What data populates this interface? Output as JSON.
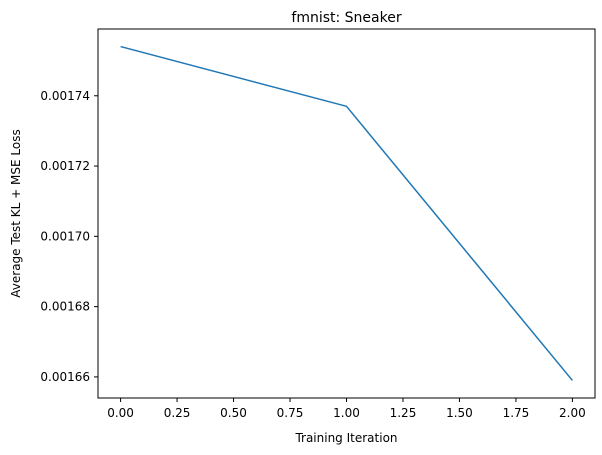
{
  "chart_data": {
    "type": "line",
    "title": "fmnist: Sneaker",
    "xlabel": "Training Iteration",
    "ylabel": "Average Test KL + MSE Loss",
    "x": [
      0,
      1,
      2
    ],
    "series": [
      {
        "values": [
          0.001754,
          0.001737,
          0.001659
        ],
        "color": "#1f77b4"
      }
    ],
    "xlim": [
      -0.1,
      2.1
    ],
    "ylim": [
      0.001654,
      0.001759
    ],
    "xticks": [
      0.0,
      0.25,
      0.5,
      0.75,
      1.0,
      1.25,
      1.5,
      1.75,
      2.0
    ],
    "xtick_labels": [
      "0.00",
      "0.25",
      "0.50",
      "0.75",
      "1.00",
      "1.25",
      "1.50",
      "1.75",
      "2.00"
    ],
    "yticks": [
      0.00166,
      0.00168,
      0.0017,
      0.00172,
      0.00174
    ],
    "ytick_labels": [
      "0.00166",
      "0.00168",
      "0.00170",
      "0.00172",
      "0.00174"
    ],
    "grid": false,
    "legend": "none"
  }
}
